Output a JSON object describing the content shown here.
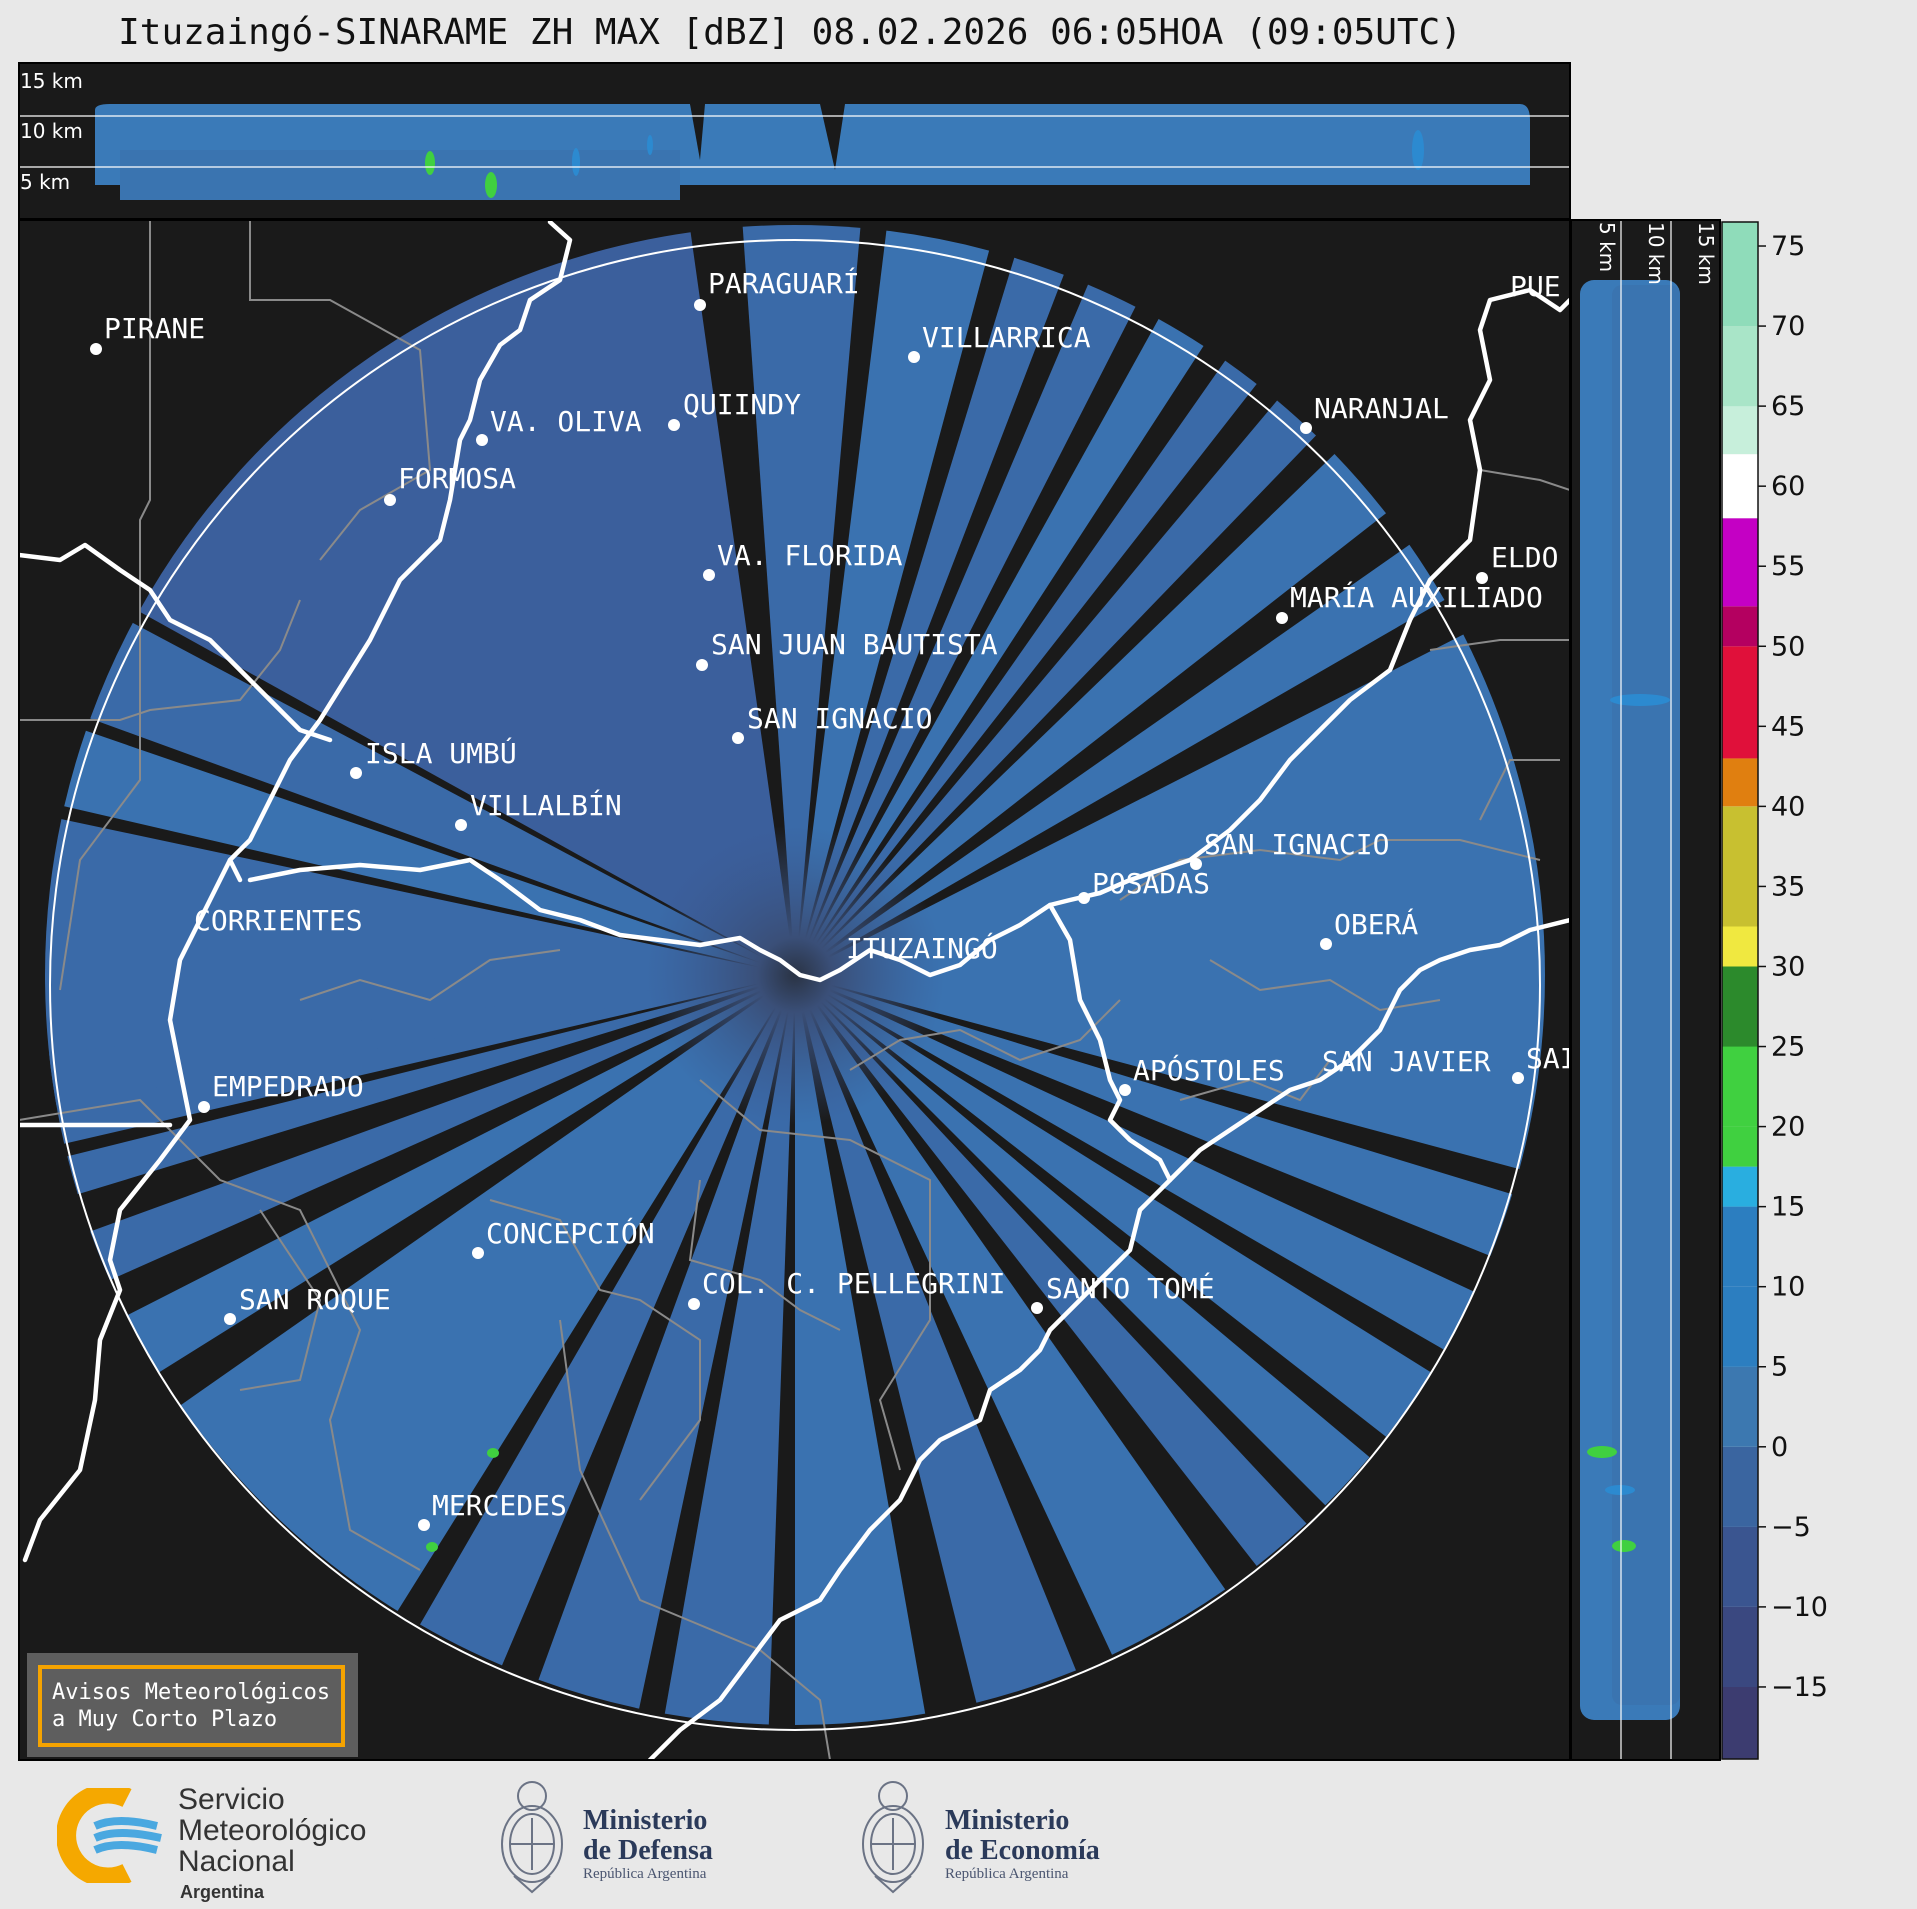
{
  "title": "Ituzaingó-SINARAME ZH MAX [dBZ] 08.02.2026 06:05HOA (09:05UTC)",
  "top_panel": {
    "heights": [
      "15 km",
      "10 km",
      "5 km"
    ]
  },
  "right_panel": {
    "heights": [
      "5 km",
      "10 km",
      "15 km"
    ]
  },
  "radar_site": "ITUZAINGÓ",
  "towns": [
    {
      "name": "PIRANE"
    },
    {
      "name": "PARAGUARÍ"
    },
    {
      "name": "VILLARRICA"
    },
    {
      "name": "QUIINDY"
    },
    {
      "name": "VA. OLIVA"
    },
    {
      "name": "FORMOSA"
    },
    {
      "name": "NARANJAL"
    },
    {
      "name": "PUE"
    },
    {
      "name": "VA. FLORIDA"
    },
    {
      "name": "ELDO"
    },
    {
      "name": "MARÍA AUXILIADO"
    },
    {
      "name": "SAN JUAN BAUTISTA"
    },
    {
      "name": "SAN IGNACIO"
    },
    {
      "name": "ISLA UMBÚ"
    },
    {
      "name": "VILLALBÍN"
    },
    {
      "name": "SAN IGNACIO"
    },
    {
      "name": "POSADAS"
    },
    {
      "name": "CORRIENTES"
    },
    {
      "name": "ITUZAINGÓ"
    },
    {
      "name": "OBERÁ"
    },
    {
      "name": "EMPEDRADO"
    },
    {
      "name": "APÓSTOLES"
    },
    {
      "name": "SAN JAVIER"
    },
    {
      "name": "SAI"
    },
    {
      "name": "CONCEPCIÓN"
    },
    {
      "name": "SAN ROQUE"
    },
    {
      "name": "COL. C. PELLEGRINI"
    },
    {
      "name": "SANTO TOMÉ"
    },
    {
      "name": "MERCEDES"
    }
  ],
  "colorbar": {
    "unit": "dBZ",
    "ticks": [
      "75",
      "70",
      "65",
      "60",
      "55",
      "50",
      "45",
      "40",
      "35",
      "30",
      "25",
      "20",
      "15",
      "10",
      "5",
      "0",
      "−5",
      "−10",
      "−15"
    ],
    "colors": {
      "c75": "#8fdcba",
      "c70": "#a9e5c8",
      "c65": "#c7efdb",
      "c60": "#ffffff",
      "c55": "#c400c4",
      "c50": "#b40060",
      "c45": "#e0103a",
      "c40": "#e07f10",
      "c35": "#c8c030",
      "c30": "#f0e840",
      "c25": "#2c8a2c",
      "c20": "#40d040",
      "c15": "#29aee0",
      "c10": "#2c7ec0",
      "c5": "#3c78b0",
      "c0": "#3a65a0",
      "cm5": "#3a5590",
      "cm10": "#3a4880",
      "cm15": "#3c3c70"
    }
  },
  "warning_box": {
    "line1": "Avisos Meteorológicos",
    "line2": "a Muy Corto Plazo"
  },
  "logos": {
    "smn": {
      "line1": "Servicio",
      "line2": "Meteorológico",
      "line3": "Nacional",
      "line4": "Argentina"
    },
    "defensa": {
      "line1": "Ministerio",
      "line2": "de Defensa",
      "line3": "República Argentina"
    },
    "economia": {
      "line1": "Ministerio",
      "line2": "de Economía",
      "line3": "República Argentina"
    }
  }
}
